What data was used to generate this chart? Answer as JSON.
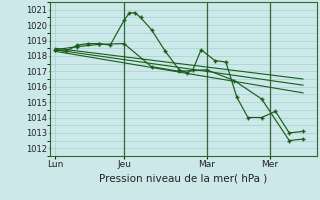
{
  "background_color": "#cce8e8",
  "grid_color": "#99cccc",
  "line_color": "#1a5c1a",
  "marker_color": "#1a5c1a",
  "xlabel": "Pression niveau de la mer( hPa )",
  "ylim": [
    1011.5,
    1021.5
  ],
  "yticks": [
    1012,
    1013,
    1014,
    1015,
    1016,
    1017,
    1018,
    1019,
    1020,
    1021
  ],
  "xtick_labels": [
    "Lun",
    "Jeu",
    "Mar",
    "Mer"
  ],
  "vline_color": "#336633",
  "series1_x": [
    0.0,
    0.4,
    0.8,
    1.2,
    1.6,
    2.0,
    2.5,
    2.7,
    2.9,
    3.1,
    3.5,
    4.0,
    4.5,
    4.8,
    5.0,
    5.3,
    5.8,
    6.2,
    6.6,
    7.0,
    7.5,
    8.0,
    8.5,
    9.0
  ],
  "series1_y": [
    1018.4,
    1018.3,
    1018.7,
    1018.8,
    1018.8,
    1018.7,
    1020.3,
    1020.8,
    1020.8,
    1020.5,
    1019.7,
    1018.3,
    1017.1,
    1016.9,
    1017.1,
    1018.4,
    1017.7,
    1017.6,
    1015.3,
    1014.0,
    1014.0,
    1014.4,
    1013.0,
    1013.1
  ],
  "series2_x": [
    0.0,
    0.8,
    1.6,
    2.5,
    3.5,
    4.5,
    5.5,
    6.5,
    7.5,
    8.5,
    9.0
  ],
  "series2_y": [
    1018.4,
    1018.6,
    1018.75,
    1018.8,
    1017.3,
    1017.0,
    1017.1,
    1016.4,
    1015.2,
    1012.5,
    1012.6
  ],
  "trend1_x": [
    0.0,
    9.0
  ],
  "trend1_y": [
    1018.5,
    1016.5
  ],
  "trend2_x": [
    0.0,
    9.0
  ],
  "trend2_y": [
    1018.4,
    1016.1
  ],
  "trend3_x": [
    0.0,
    9.0
  ],
  "trend3_y": [
    1018.3,
    1015.6
  ],
  "xlim": [
    -0.2,
    9.5
  ],
  "vlines": [
    2.5,
    5.5,
    7.8
  ],
  "xtick_pos": [
    0.0,
    2.5,
    5.5,
    7.8
  ]
}
